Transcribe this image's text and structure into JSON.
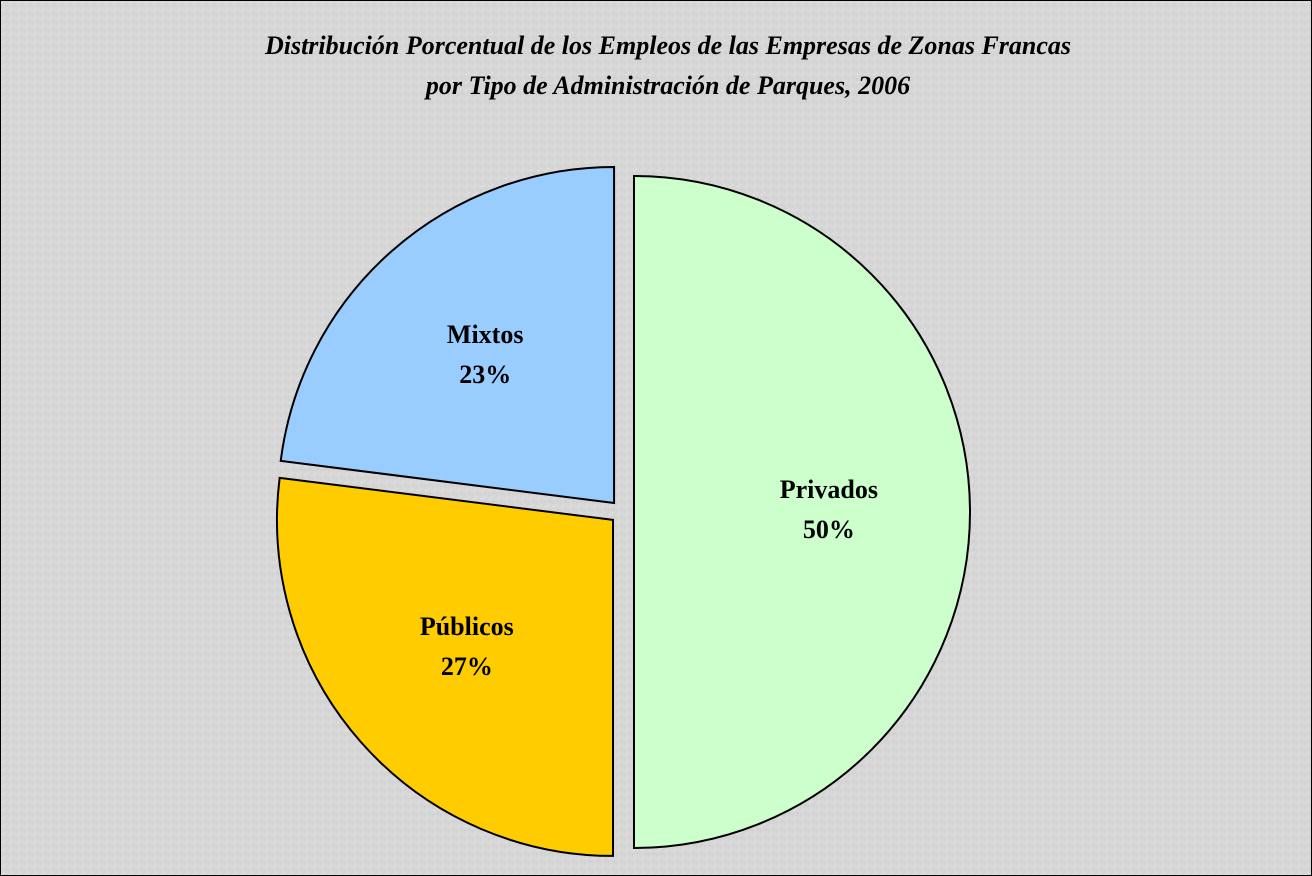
{
  "chart_data": {
    "type": "pie",
    "title": [
      "Distribución Porcentual de los Empleos de las Empresas de Zonas Francas",
      "por Tipo de Administración de Parques, 2006"
    ],
    "categories": [
      "Privados",
      "Públicos",
      "Mixtos"
    ],
    "values": [
      50,
      27,
      23
    ],
    "value_labels": [
      "50%",
      "27%",
      "23%"
    ],
    "colors": [
      "#ccffcc",
      "#ffcc00",
      "#99ccff"
    ]
  }
}
